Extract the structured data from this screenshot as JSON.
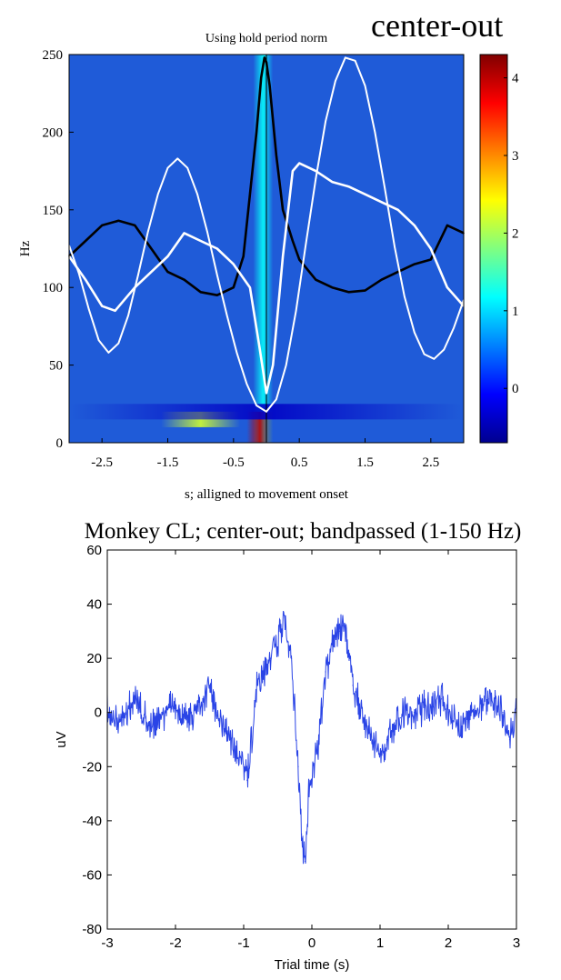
{
  "figure_label": "center-out",
  "chart_data": [
    {
      "type": "heatmap",
      "title": "Using hold period norm",
      "xlabel": "s; alligned to movement onset",
      "ylabel": "Hz",
      "xlim": [
        -3,
        3
      ],
      "ylim": [
        0,
        250
      ],
      "x_ticks": [
        -2.5,
        -1.5,
        -0.5,
        0.5,
        1.5,
        2.5
      ],
      "x_tick_labels": [
        "-2.5",
        "-1.5",
        "-0.5",
        "0.5",
        "1.5",
        "2.5"
      ],
      "y_ticks": [
        0,
        50,
        100,
        150,
        200,
        250
      ],
      "y_tick_labels": [
        "0",
        "50",
        "100",
        "150",
        "200",
        "250"
      ],
      "colorbar": {
        "range": [
          -0.7,
          4.3
        ],
        "ticks": [
          0,
          1,
          2,
          3,
          4
        ],
        "tick_labels": [
          "0",
          "1",
          "2",
          "3",
          "4"
        ],
        "colormap": [
          "#00008f",
          "#0000ff",
          "#0080ff",
          "#00ffff",
          "#80ff80",
          "#ffff00",
          "#ff8000",
          "#ff0000",
          "#800000"
        ]
      },
      "colors": {
        "background": "#1f5bd8",
        "black_trace": "#000000",
        "white_trace": "#ffffff",
        "vline": "#000000"
      },
      "heatmap_features": [
        {
          "x": [
            -0.2,
            0.1
          ],
          "y": [
            0,
            250
          ],
          "level": 1.2
        },
        {
          "x": [
            -1.6,
            -0.4
          ],
          "y": [
            10,
            20
          ],
          "level": 2.2
        },
        {
          "x": [
            -0.3,
            0.1
          ],
          "y": [
            0,
            20
          ],
          "level": 4.0
        },
        {
          "x": [
            -3,
            3
          ],
          "y": [
            15,
            25
          ],
          "level": -0.4
        }
      ],
      "series": [
        {
          "color": "black",
          "x": [
            -3.0,
            -2.75,
            -2.5,
            -2.25,
            -2.0,
            -1.75,
            -1.5,
            -1.25,
            -1.0,
            -0.75,
            -0.5,
            -0.35,
            -0.25,
            -0.15,
            -0.08,
            -0.03,
            0.0,
            0.05,
            0.15,
            0.25,
            0.4,
            0.5,
            0.75,
            1.0,
            1.25,
            1.5,
            1.75,
            2.0,
            2.25,
            2.5,
            2.75,
            3.0
          ],
          "y": [
            120,
            130,
            140,
            143,
            140,
            125,
            110,
            105,
            97,
            95,
            100,
            120,
            160,
            200,
            235,
            248,
            245,
            230,
            185,
            150,
            130,
            118,
            105,
            100,
            97,
            98,
            105,
            110,
            115,
            118,
            140,
            135
          ]
        },
        {
          "color": "white",
          "x": [
            -3.0,
            -2.75,
            -2.5,
            -2.3,
            -2.0,
            -1.75,
            -1.5,
            -1.25,
            -1.0,
            -0.75,
            -0.5,
            -0.25,
            -0.1,
            0.0,
            0.1,
            0.25,
            0.4,
            0.5,
            0.75,
            1.0,
            1.25,
            1.5,
            1.75,
            2.0,
            2.25,
            2.5,
            2.75,
            3.0
          ],
          "y": [
            120,
            105,
            88,
            85,
            100,
            110,
            120,
            135,
            130,
            125,
            115,
            100,
            60,
            32,
            50,
            120,
            175,
            180,
            175,
            168,
            165,
            160,
            155,
            150,
            140,
            125,
            100,
            88
          ]
        },
        {
          "color": "white",
          "x": [
            -3.0,
            -2.85,
            -2.7,
            -2.55,
            -2.4,
            -2.25,
            -2.1,
            -1.95,
            -1.8,
            -1.65,
            -1.5,
            -1.35,
            -1.2,
            -1.05,
            -0.9,
            -0.75,
            -0.6,
            -0.45,
            -0.3,
            -0.15,
            0.0,
            0.15,
            0.3,
            0.45,
            0.6,
            0.75,
            0.9,
            1.05,
            1.2,
            1.35,
            1.5,
            1.65,
            1.8,
            1.95,
            2.1,
            2.25,
            2.4,
            2.55,
            2.7,
            2.85,
            3.0
          ],
          "y": [
            127,
            109,
            86,
            66,
            58,
            64,
            82,
            108,
            136,
            160,
            177,
            183,
            177,
            160,
            136,
            108,
            82,
            58,
            38,
            24,
            20,
            28,
            50,
            85,
            128,
            170,
            207,
            233,
            248,
            246,
            230,
            200,
            164,
            126,
            94,
            71,
            57,
            54,
            60,
            74,
            92
          ]
        }
      ]
    },
    {
      "type": "line",
      "title": "Monkey CL; center-out; bandpassed (1-150 Hz)",
      "xlabel": "Trial time (s)",
      "ylabel": "uV",
      "xlim": [
        -3,
        3
      ],
      "ylim": [
        -80,
        60
      ],
      "x_ticks": [
        -3,
        -2,
        -1,
        0,
        1,
        2,
        3
      ],
      "x_tick_labels": [
        "-3",
        "-2",
        "-1",
        "0",
        "1",
        "2",
        "3"
      ],
      "y_ticks": [
        -80,
        -60,
        -40,
        -20,
        0,
        20,
        40,
        60
      ],
      "y_tick_labels": [
        "-80",
        "-60",
        "-40",
        "-20",
        "0",
        "20",
        "40",
        "60"
      ],
      "colors": {
        "line": "#2a44e6"
      },
      "series": [
        {
          "x": [
            -3.0,
            -2.8,
            -2.6,
            -2.4,
            -2.2,
            -2.0,
            -1.8,
            -1.6,
            -1.5,
            -1.4,
            -1.2,
            -1.0,
            -0.95,
            -0.8,
            -0.6,
            -0.45,
            -0.4,
            -0.3,
            -0.2,
            -0.15,
            -0.1,
            -0.05,
            0.0,
            0.1,
            0.2,
            0.3,
            0.4,
            0.45,
            0.5,
            0.6,
            0.8,
            1.0,
            1.1,
            1.3,
            1.5,
            1.7,
            1.9,
            2.0,
            2.2,
            2.4,
            2.6,
            2.8,
            2.9,
            3.0
          ],
          "y": [
            0,
            -2,
            5,
            -5,
            0,
            2,
            -2,
            5,
            10,
            0,
            -10,
            -20,
            -25,
            10,
            20,
            30,
            35,
            20,
            -20,
            -45,
            -55,
            -30,
            -25,
            -10,
            15,
            25,
            30,
            32,
            28,
            10,
            -5,
            -15,
            -10,
            -2,
            0,
            2,
            5,
            0,
            -5,
            0,
            5,
            0,
            -10,
            0
          ]
        }
      ]
    }
  ]
}
